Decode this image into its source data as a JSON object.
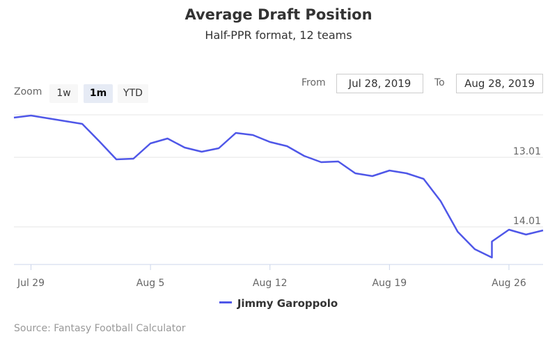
{
  "header": {
    "title": "Average Draft Position",
    "subtitle": "Half-PPR format, 12 teams"
  },
  "zoom": {
    "label": "Zoom",
    "buttons": [
      {
        "label": "1w",
        "active": false
      },
      {
        "label": "1m",
        "active": true
      },
      {
        "label": "YTD",
        "active": false
      }
    ]
  },
  "range": {
    "from_label": "From",
    "from_value": "Jul 28, 2019",
    "to_label": "To",
    "to_value": "Aug 28, 2019"
  },
  "legend": {
    "series_name": "Jimmy Garoppolo"
  },
  "source": "Source: Fantasy Football Calculator",
  "colors": {
    "series": "#4f57e8",
    "grid": "#e6e6e6",
    "axis": "#ccd6eb"
  },
  "chart_data": {
    "type": "line",
    "y_reversed": true,
    "ylim": [
      12.4,
      14.55
    ],
    "xlim": [
      "2019-07-28",
      "2019-08-28"
    ],
    "y_ticks": [
      13.01,
      14.01
    ],
    "x_ticks": [
      {
        "date": "2019-07-29",
        "label": "Jul 29"
      },
      {
        "date": "2019-08-05",
        "label": "Aug 5"
      },
      {
        "date": "2019-08-12",
        "label": "Aug 12"
      },
      {
        "date": "2019-08-19",
        "label": "Aug 19"
      },
      {
        "date": "2019-08-26",
        "label": "Aug 26"
      }
    ],
    "series": [
      {
        "name": "Jimmy Garoppolo",
        "points": [
          {
            "x": "2019-07-28",
            "y": 12.44
          },
          {
            "x": "2019-07-29",
            "y": 12.41
          },
          {
            "x": "2019-07-30",
            "y": 12.45
          },
          {
            "x": "2019-07-31",
            "y": 12.49
          },
          {
            "x": "2019-08-01",
            "y": 12.53
          },
          {
            "x": "2019-08-02",
            "y": 12.78
          },
          {
            "x": "2019-08-03",
            "y": 13.04
          },
          {
            "x": "2019-08-04",
            "y": 13.03
          },
          {
            "x": "2019-08-05",
            "y": 12.81
          },
          {
            "x": "2019-08-06",
            "y": 12.74
          },
          {
            "x": "2019-08-07",
            "y": 12.87
          },
          {
            "x": "2019-08-08",
            "y": 12.93
          },
          {
            "x": "2019-08-09",
            "y": 12.88
          },
          {
            "x": "2019-08-10",
            "y": 12.66
          },
          {
            "x": "2019-08-11",
            "y": 12.69
          },
          {
            "x": "2019-08-12",
            "y": 12.79
          },
          {
            "x": "2019-08-13",
            "y": 12.85
          },
          {
            "x": "2019-08-14",
            "y": 12.99
          },
          {
            "x": "2019-08-15",
            "y": 13.08
          },
          {
            "x": "2019-08-16",
            "y": 13.07
          },
          {
            "x": "2019-08-17",
            "y": 13.24
          },
          {
            "x": "2019-08-18",
            "y": 13.28
          },
          {
            "x": "2019-08-19",
            "y": 13.2
          },
          {
            "x": "2019-08-20",
            "y": 13.24
          },
          {
            "x": "2019-08-21",
            "y": 13.32
          },
          {
            "x": "2019-08-22",
            "y": 13.64
          },
          {
            "x": "2019-08-23",
            "y": 14.08
          },
          {
            "x": "2019-08-24",
            "y": 14.33
          },
          {
            "x": "2019-08-25",
            "y": 14.45
          },
          {
            "x": "2019-08-25",
            "y": 14.22
          },
          {
            "x": "2019-08-26",
            "y": 14.05
          },
          {
            "x": "2019-08-27",
            "y": 14.12
          },
          {
            "x": "2019-08-28",
            "y": 14.06
          }
        ]
      }
    ]
  }
}
